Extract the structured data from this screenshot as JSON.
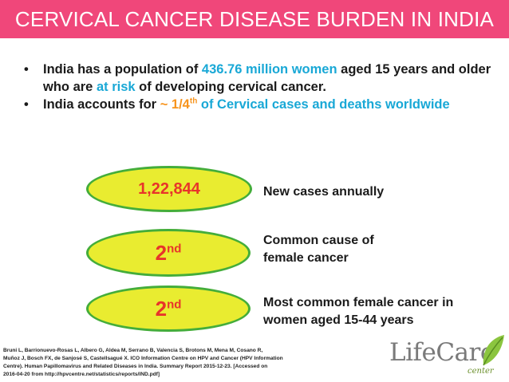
{
  "title": "CERVICAL CANCER DISEASE BURDEN IN INDIA",
  "bullets": [
    {
      "dot": "•",
      "t1": "India has a population of ",
      "highlight1": "436.76 million women",
      "t2": " aged 15 years and older who are ",
      "highlight2": "at risk",
      "t3": " of developing cervical cancer."
    },
    {
      "dot": "•",
      "t1": "India accounts for ",
      "highlight1": "~ 1/4",
      "sup": "th",
      "highlight2": "  of Cervical cases  and deaths worldwide"
    }
  ],
  "stats": [
    {
      "value": "1,22,844",
      "label_lines": [
        "New cases annually"
      ]
    },
    {
      "value": "2",
      "sup": "nd",
      "label_lines": [
        "Common cause of",
        "female cancer"
      ]
    },
    {
      "value": "2",
      "sup": "nd",
      "label_lines": [
        "Most common female cancer in",
        "women aged 15-44 years"
      ]
    }
  ],
  "reference": [
    "Bruni L, Barrionuevo-Rosas L, Albero G, Aldea M, Serrano B, Valencia S, Brotons M, Mena M, Cosano R,",
    "Muñoz J, Bosch FX, de Sanjosé S, Castellsagué X. ICO Information Centre on HPV and Cancer (HPV Information",
    "Centre). Human Papillomavirus and Related Diseases in India. Summary Report 2015-12-23. [Accessed on",
    "2016-04-20 from http://hpvcentre.net/statistics/reports/IND.pdf]"
  ],
  "logo": {
    "name": "LifeCare",
    "sub": "center"
  },
  "colors": {
    "title_bar": "#f0477a",
    "highlight_cyan": "#19a8d6",
    "highlight_orange": "#f7941d",
    "oval_fill": "#e9ec30",
    "oval_border": "#44ad3a",
    "stat_text": "#e8342a"
  }
}
